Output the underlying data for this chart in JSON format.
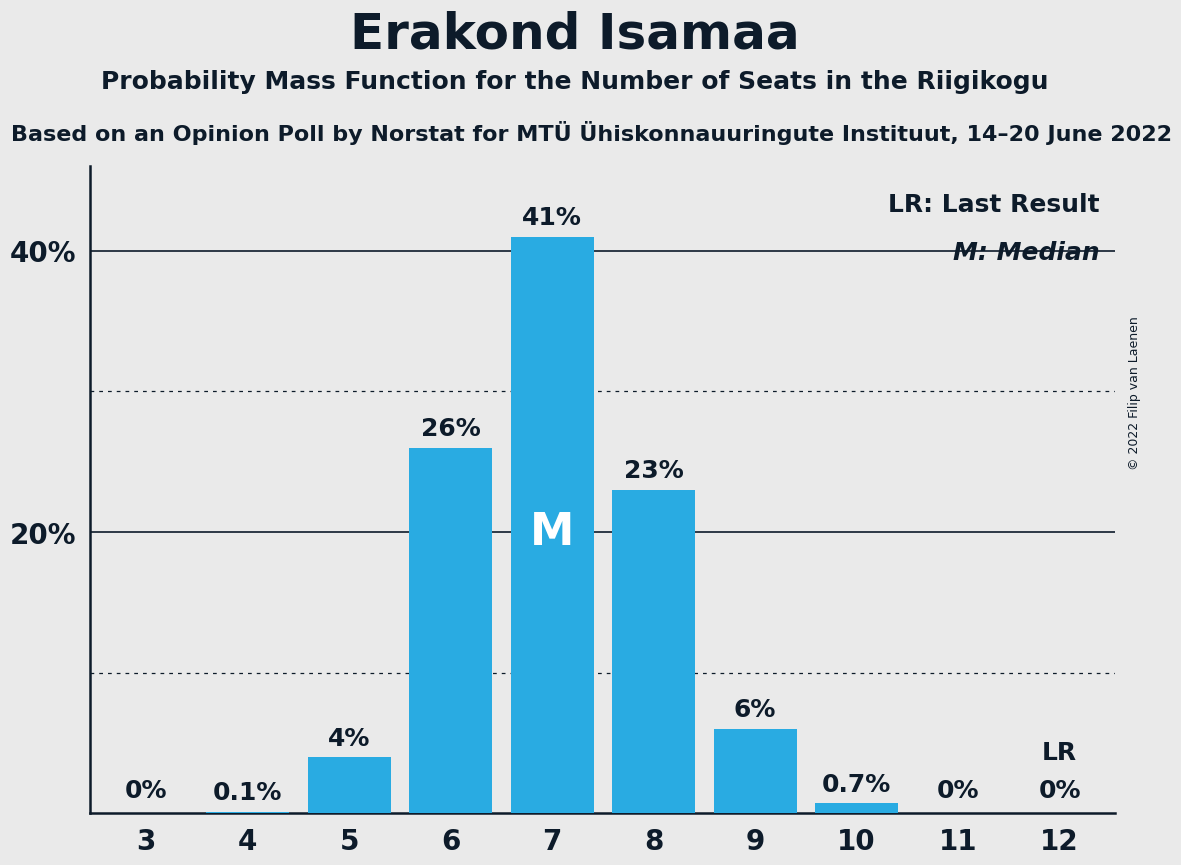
{
  "title": "Erakond Isamaa",
  "subtitle": "Probability Mass Function for the Number of Seats in the Riigikogu",
  "subsubtitle": "Based on an Opinion Poll by Norstat for MTÜ Ühiskonnauuringute Instituut, 14–20 June 2022",
  "copyright": "© 2022 Filip van Laenen",
  "categories": [
    3,
    4,
    5,
    6,
    7,
    8,
    9,
    10,
    11,
    12
  ],
  "values": [
    0.0,
    0.1,
    4.0,
    26.0,
    41.0,
    23.0,
    6.0,
    0.7,
    0.0,
    0.0
  ],
  "bar_labels": [
    "0%",
    "0.1%",
    "4%",
    "26%",
    "41%",
    "23%",
    "6%",
    "0.7%",
    "0%",
    "0%"
  ],
  "median_index": 4,
  "lr_index": 9,
  "bar_color": "#29ABE2",
  "background_color": "#EAEAEA",
  "axis_color": "#0d1b2a",
  "text_color": "#0d1b2a",
  "ylim": [
    0,
    46
  ],
  "dotted_gridlines": [
    10,
    30
  ],
  "solid_gridlines": [
    20,
    40
  ],
  "title_fontsize": 36,
  "subtitle_fontsize": 18,
  "subsubtitle_fontsize": 16,
  "bar_label_fontsize": 18,
  "axis_tick_fontsize": 20,
  "legend_fontsize": 18,
  "copyright_fontsize": 9,
  "median_label_fontsize": 32
}
